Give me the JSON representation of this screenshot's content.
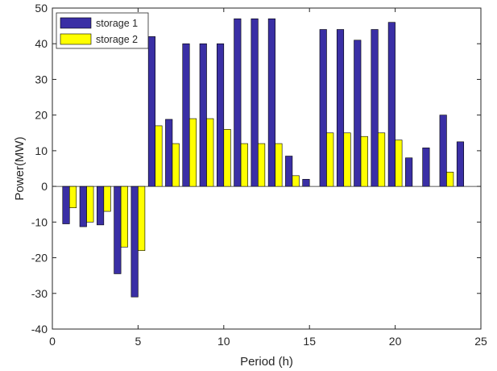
{
  "chart_data": {
    "type": "bar",
    "xlabel": "Period (h)",
    "ylabel": "Power(MW)",
    "xlim": [
      0,
      25
    ],
    "ylim": [
      -40,
      50
    ],
    "xticks": [
      0,
      5,
      10,
      15,
      20,
      25
    ],
    "yticks": [
      -40,
      -30,
      -20,
      -10,
      0,
      10,
      20,
      30,
      40,
      50
    ],
    "grid": false,
    "legend_position": "top-left",
    "categories": [
      1,
      2,
      3,
      4,
      5,
      6,
      7,
      8,
      9,
      10,
      11,
      12,
      13,
      14,
      15,
      16,
      17,
      18,
      19,
      20,
      21,
      22,
      23,
      24
    ],
    "series": [
      {
        "name": "storage 1",
        "color": "#3a2fa5",
        "values": [
          -10.5,
          -11.3,
          -10.8,
          -24.5,
          -31,
          42,
          18.8,
          40,
          40,
          40,
          47,
          47,
          47,
          8.5,
          2,
          44,
          44,
          41,
          44,
          46,
          8,
          10.8,
          20,
          12.5
        ]
      },
      {
        "name": "storage 2",
        "color": "#ffff00",
        "values": [
          -6,
          -10,
          -7,
          -17,
          -18,
          17,
          12,
          19,
          19,
          16,
          12,
          12,
          12,
          3,
          0,
          15,
          15,
          14,
          15,
          13,
          0,
          0,
          4,
          0
        ]
      }
    ]
  }
}
